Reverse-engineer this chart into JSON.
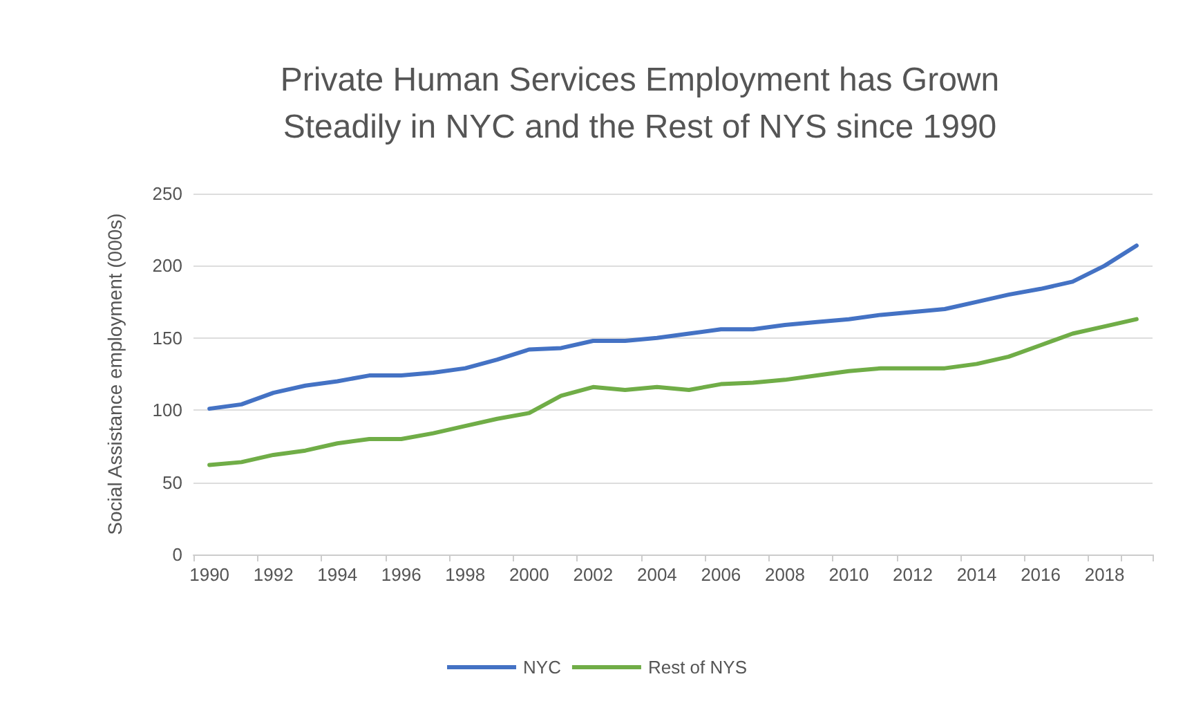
{
  "chart_data": {
    "type": "line",
    "title": "Private Human Services Employment has Grown\nSteadily in NYC and the Rest of NYS since 1990",
    "ylabel": "Social Assistance employment (000s)",
    "categories": [
      "1990",
      null,
      "1992",
      null,
      "1994",
      null,
      "1996",
      null,
      "1998",
      null,
      "2000",
      null,
      "2002",
      null,
      "2004",
      null,
      "2006",
      null,
      "2008",
      null,
      "2010",
      null,
      "2012",
      null,
      "2014",
      null,
      "2016",
      null,
      "2018",
      null
    ],
    "series": [
      {
        "name": "NYC",
        "color": "#4472c4",
        "values": [
          101,
          104,
          112,
          117,
          120,
          124,
          124,
          126,
          129,
          135,
          142,
          143,
          148,
          148,
          150,
          153,
          156,
          156,
          159,
          161,
          163,
          166,
          168,
          170,
          175,
          180,
          184,
          189,
          200,
          214
        ]
      },
      {
        "name": "Rest of NYS",
        "color": "#70ad47",
        "values": [
          62,
          64,
          69,
          72,
          77,
          80,
          80,
          84,
          89,
          94,
          98,
          110,
          116,
          114,
          116,
          114,
          118,
          119,
          121,
          124,
          127,
          129,
          129,
          129,
          132,
          137,
          145,
          153,
          158,
          163
        ]
      }
    ],
    "ylim": [
      0,
      250
    ],
    "yticks": [
      0,
      50,
      100,
      150,
      200,
      250
    ],
    "grid": "y",
    "legend": "bottom",
    "marker": "none",
    "line_style": "solid"
  }
}
